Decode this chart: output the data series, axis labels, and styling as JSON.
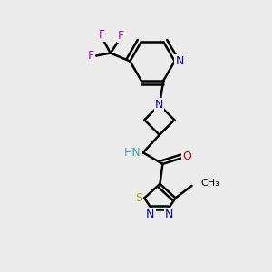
{
  "bg_color": "#ececec",
  "bond_color": "#000000",
  "bond_width": 1.8,
  "figsize": [
    3.0,
    3.0
  ],
  "dpi": 100,
  "colors": {
    "S": "#b8a000",
    "N": "#0000cc",
    "O": "#cc0000",
    "F": "#cc00cc",
    "C": "#000000",
    "NH": "#0000cc",
    "H": "#4aa0a0"
  }
}
